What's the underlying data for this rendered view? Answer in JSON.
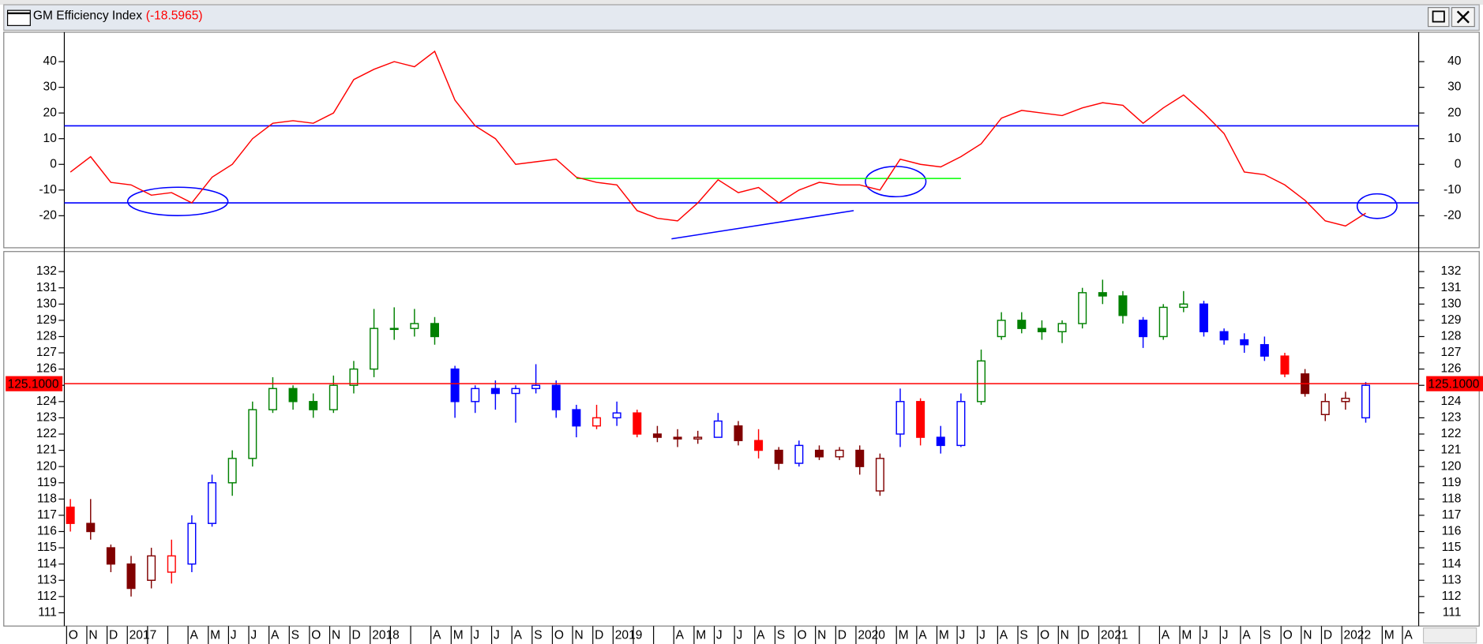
{
  "chart_data": [
    {
      "type": "line",
      "title": "GM Efficiency Index",
      "subtitle": "(-18.5965)",
      "color": "#ff0000",
      "values": [
        -3,
        3,
        -7,
        -8,
        -12,
        -11,
        -15,
        -5,
        0,
        10,
        16,
        17,
        16,
        20,
        33,
        37,
        40,
        38,
        44,
        25,
        15,
        10,
        0,
        1,
        2,
        -5,
        -7,
        -8,
        -18,
        -21,
        -22,
        -15,
        -6,
        -11,
        -9,
        -15,
        -10,
        -7,
        -8,
        -8,
        -10,
        2,
        0,
        -1,
        3,
        8,
        18,
        21,
        20,
        19,
        22,
        24,
        23,
        16,
        22,
        27,
        20,
        12,
        -3,
        -4,
        -8,
        -14,
        -22,
        -24,
        -19,
        null,
        null
      ],
      "ylim": [
        -31,
        50
      ],
      "yticks": [
        -20,
        -10,
        0,
        10,
        20,
        30,
        40
      ],
      "hlines": [
        {
          "value": 15,
          "color": "#0000ff"
        },
        {
          "value": -15,
          "color": "#0000ff"
        }
      ],
      "segments": [
        {
          "x": [
            25,
            44
          ],
          "y": [
            -5.5,
            -5.5
          ],
          "color": "#00ff00"
        },
        {
          "x": [
            29.7,
            38.7
          ],
          "y": [
            -29,
            -18
          ],
          "color": "#0000ff"
        }
      ]
    },
    {
      "type": "candlestick",
      "categories": [
        "O",
        "N",
        "D",
        "2017",
        null,
        null,
        "A",
        "M",
        "J",
        "J",
        "A",
        "S",
        "O",
        "N",
        "D",
        "2018",
        null,
        null,
        "A",
        "M",
        "J",
        "J",
        "A",
        "S",
        "O",
        "N",
        "D",
        "2019",
        null,
        null,
        "A",
        "M",
        "J",
        "J",
        "A",
        "S",
        "O",
        "N",
        "D",
        "2020",
        null,
        "M",
        "A",
        "M",
        "J",
        "J",
        "A",
        "S",
        "O",
        "N",
        "D",
        "2021",
        null,
        null,
        "A",
        "M",
        "J",
        "J",
        "A",
        "S",
        "O",
        "N",
        "D",
        "2022",
        null,
        "M",
        "A"
      ],
      "open": [
        117.5,
        116.5,
        115,
        114,
        113,
        113.5,
        114,
        116.5,
        119,
        120.5,
        123.5,
        124.8,
        124,
        123.5,
        125,
        126,
        128.5,
        128.5,
        128.8,
        126,
        124,
        124.8,
        124.5,
        124.8,
        125,
        123.5,
        122.5,
        123,
        123.3,
        122,
        121.8,
        121.7,
        121.8,
        122.5,
        121.6,
        121,
        120.2,
        121,
        120.6,
        121,
        118.5,
        122,
        124,
        121.8,
        121.3,
        124,
        128,
        129,
        128.5,
        128.3,
        128.8,
        130.7,
        130.5,
        129,
        128,
        129.8,
        130,
        128.3,
        127.8,
        127.5,
        126.8,
        125.7,
        123.2,
        124,
        123,
        null,
        null
      ],
      "high": [
        118,
        118,
        115.2,
        114.5,
        115,
        115.5,
        117,
        119.5,
        121,
        124,
        125.5,
        125,
        124.5,
        125.6,
        126.5,
        129.7,
        129.8,
        129.7,
        129.2,
        126.2,
        125,
        125.3,
        125,
        126.3,
        125.3,
        123.8,
        123.8,
        124,
        123.5,
        122.5,
        122.3,
        122.2,
        123.3,
        122.8,
        122.3,
        121.2,
        121.6,
        121.3,
        121.2,
        121.3,
        120.8,
        124.8,
        124.2,
        122.5,
        124.5,
        127.2,
        129.5,
        129.5,
        129,
        129,
        131,
        131.5,
        130.8,
        129.2,
        130,
        130.8,
        130.2,
        128.5,
        128.2,
        128,
        127,
        126,
        124.5,
        124.6,
        125.2,
        null,
        null
      ],
      "low": [
        116,
        115.5,
        113.5,
        112,
        112.5,
        112.8,
        113.5,
        116.3,
        118.2,
        120,
        123.3,
        123.5,
        123,
        123.3,
        124.5,
        125.5,
        127.8,
        128,
        127.5,
        123,
        123.3,
        123.5,
        122.7,
        124.5,
        123,
        121.8,
        122.3,
        122.5,
        121.8,
        121.5,
        121.2,
        121.4,
        121.8,
        121.3,
        120.5,
        119.8,
        120,
        120.4,
        120.4,
        119.5,
        118.2,
        121.2,
        121.3,
        120.8,
        121.2,
        123.8,
        127.8,
        128.2,
        127.8,
        127.6,
        128.5,
        130,
        128.8,
        127.3,
        127.8,
        129.5,
        128,
        127.5,
        127,
        126.5,
        125.5,
        124.3,
        122.8,
        123.5,
        122.7,
        null,
        null
      ],
      "close": [
        116.5,
        116,
        114,
        112.5,
        114.5,
        114.5,
        116.5,
        119,
        120.5,
        123.5,
        124.8,
        124,
        123.5,
        125,
        126,
        128.5,
        128.5,
        128.8,
        128,
        124,
        124.8,
        124.5,
        124.8,
        125,
        123.5,
        122.5,
        123,
        123.3,
        122,
        121.8,
        121.7,
        121.8,
        122.8,
        121.6,
        121,
        120.2,
        121.3,
        120.6,
        121,
        120,
        120.5,
        124,
        121.8,
        121.3,
        124,
        126.5,
        129,
        128.5,
        128.3,
        128.8,
        130.7,
        130.5,
        129.3,
        128,
        129.8,
        130,
        128.3,
        127.8,
        127.5,
        126.8,
        125.7,
        124.5,
        124,
        124.2,
        125,
        null,
        null
      ],
      "colors": [
        "#ff0000",
        "#800000",
        "#800000",
        "#800000",
        "#800000",
        "#ff0000",
        "#0000ff",
        "#0000ff",
        "#008000",
        "#008000",
        "#008000",
        "#008000",
        "#008000",
        "#008000",
        "#008000",
        "#008000",
        "#008000",
        "#008000",
        "#008000",
        "#0000ff",
        "#0000ff",
        "#0000ff",
        "#0000ff",
        "#0000ff",
        "#0000ff",
        "#0000ff",
        "#ff0000",
        "#0000ff",
        "#ff0000",
        "#800000",
        "#800000",
        "#800000",
        "#0000ff",
        "#800000",
        "#ff0000",
        "#800000",
        "#0000ff",
        "#800000",
        "#800000",
        "#800000",
        "#800000",
        "#0000ff",
        "#ff0000",
        "#0000ff",
        "#0000ff",
        "#008000",
        "#008000",
        "#008000",
        "#008000",
        "#008000",
        "#008000",
        "#008000",
        "#008000",
        "#0000ff",
        "#008000",
        "#008000",
        "#0000ff",
        "#0000ff",
        "#0000ff",
        "#0000ff",
        "#ff0000",
        "#800000",
        "#800000",
        "#800000",
        "#0000ff",
        null,
        null
      ],
      "ylim": [
        110.3,
        133
      ],
      "yticks": [
        111,
        112,
        113,
        114,
        115,
        116,
        117,
        118,
        119,
        120,
        121,
        122,
        123,
        124,
        125,
        126,
        127,
        128,
        129,
        130,
        131,
        132
      ],
      "hline": {
        "value": 125.1,
        "label": "125.1000",
        "color": "#ff0000"
      }
    }
  ]
}
